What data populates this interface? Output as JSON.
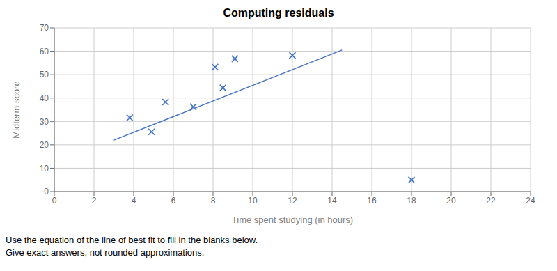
{
  "chart_data": {
    "type": "scatter",
    "title": "Computing residuals",
    "xlabel": "Time spent studying (in hours)",
    "ylabel": "Midterm score",
    "xlim": [
      0,
      24
    ],
    "ylim": [
      0,
      70
    ],
    "xticks": [
      0,
      2,
      4,
      6,
      8,
      10,
      12,
      14,
      16,
      18,
      20,
      22,
      24
    ],
    "yticks": [
      0,
      10,
      20,
      30,
      40,
      50,
      60,
      70
    ],
    "grid": true,
    "annotations": [
      "Use the equation of the line of best fit to fill in the blanks below.",
      "Give exact answers, not rounded approximations."
    ],
    "series": [
      {
        "type": "scatter",
        "marker": "x",
        "color": "#4472c4",
        "x": [
          3.8,
          4.9,
          5.6,
          7.0,
          8.1,
          8.5,
          9.1,
          12.0,
          18.0
        ],
        "values": [
          31.56,
          25.54,
          38.26,
          36.21,
          53.2,
          44.33,
          56.77,
          58.18,
          5.0
        ]
      },
      {
        "type": "line",
        "line_style": "solid",
        "color": "#4472c4",
        "x": [
          3.0,
          14.5
        ],
        "values": [
          22.0,
          60.5
        ]
      }
    ]
  }
}
